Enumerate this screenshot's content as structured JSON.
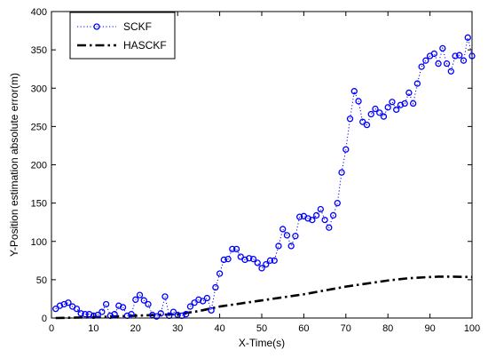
{
  "chart_data": {
    "type": "line",
    "title": "",
    "xlabel": "X-Time(s)",
    "ylabel": "Y-Position estimation absolute error(m)",
    "xlim": [
      0,
      100
    ],
    "ylim": [
      0,
      400
    ],
    "x_ticks": [
      "0",
      "10",
      "20",
      "30",
      "40",
      "50",
      "60",
      "70",
      "80",
      "90",
      "100"
    ],
    "y_ticks": [
      "0",
      "50",
      "100",
      "150",
      "200",
      "250",
      "300",
      "350",
      "400"
    ],
    "grid": false,
    "legend_position": "top-left",
    "series": [
      {
        "name": "SCKF",
        "style": "dotted line with circle markers",
        "color": "#0000ff",
        "x": [
          1,
          2,
          3,
          4,
          5,
          6,
          7,
          8,
          9,
          10,
          11,
          12,
          13,
          14,
          15,
          16,
          17,
          18,
          19,
          20,
          21,
          22,
          23,
          24,
          25,
          26,
          27,
          28,
          29,
          30,
          31,
          32,
          33,
          34,
          35,
          36,
          37,
          38,
          39,
          40,
          41,
          42,
          43,
          44,
          45,
          46,
          47,
          48,
          49,
          50,
          51,
          52,
          53,
          54,
          55,
          56,
          57,
          58,
          59,
          60,
          61,
          62,
          63,
          64,
          65,
          66,
          67,
          68,
          69,
          70,
          71,
          72,
          73,
          74,
          75,
          76,
          77,
          78,
          79,
          80,
          81,
          82,
          83,
          84,
          85,
          86,
          87,
          88,
          89,
          90,
          91,
          92,
          93,
          94,
          95,
          96,
          97,
          98,
          99,
          100
        ],
        "y": [
          12,
          16,
          18,
          20,
          15,
          12,
          6,
          5,
          5,
          3,
          4,
          8,
          18,
          3,
          5,
          16,
          14,
          3,
          5,
          24,
          30,
          23,
          18,
          4,
          2,
          6,
          28,
          3,
          8,
          4,
          3,
          5,
          15,
          20,
          24,
          22,
          26,
          10,
          40,
          58,
          76,
          77,
          90,
          90,
          80,
          76,
          78,
          77,
          72,
          65,
          70,
          75,
          75,
          94,
          116,
          108,
          94,
          107,
          132,
          133,
          130,
          128,
          134,
          142,
          128,
          118,
          134,
          150,
          190,
          220,
          260,
          296,
          283,
          256,
          252,
          266,
          273,
          268,
          263,
          275,
          282,
          272,
          278,
          280,
          294,
          280,
          306,
          328,
          336,
          342,
          345,
          332,
          352,
          332,
          322,
          342,
          343,
          336,
          366,
          342
        ]
      },
      {
        "name": "HASCKF",
        "style": "dash-dot line",
        "color": "#000000",
        "x": [
          1,
          10,
          20,
          30,
          35,
          40,
          45,
          50,
          55,
          60,
          65,
          70,
          75,
          80,
          85,
          90,
          92,
          95,
          100
        ],
        "y": [
          0,
          1,
          3,
          5,
          9,
          15,
          19,
          23,
          27,
          31,
          36,
          41,
          45,
          49,
          52,
          53.5,
          54,
          54,
          53.5
        ]
      }
    ]
  }
}
